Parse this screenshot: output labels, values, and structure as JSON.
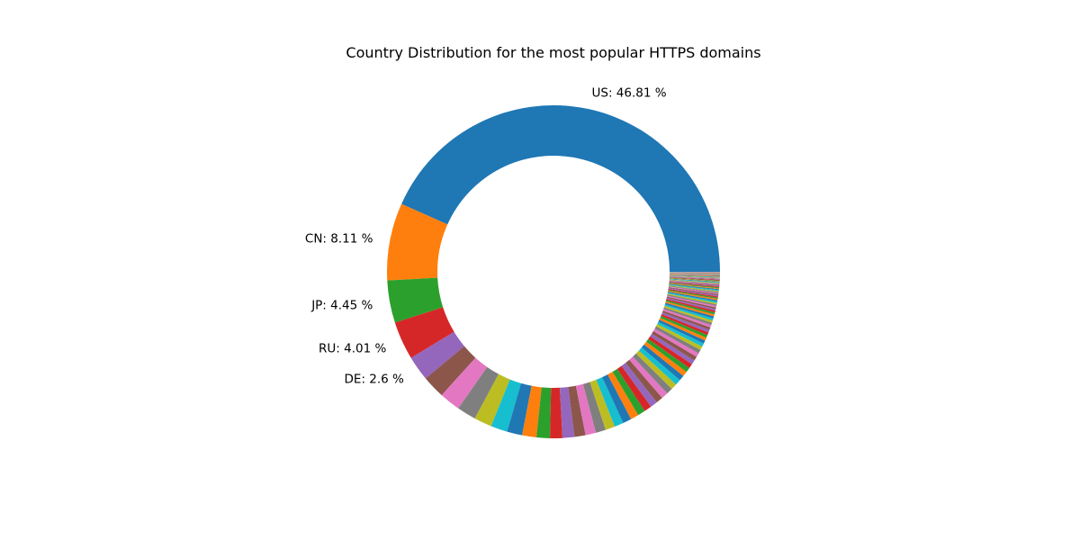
{
  "chart_data": {
    "type": "pie",
    "style": "donut",
    "title": "Country Distribution for the most popular HTTPS domains",
    "legend": "none",
    "start_angle_deg": 0,
    "direction": "counterclockwise",
    "slices": [
      {
        "name": "US",
        "value": 46.81,
        "label": "US: 46.81 %"
      },
      {
        "name": "CN",
        "value": 8.11,
        "label": "CN: 8.11 %"
      },
      {
        "name": "JP",
        "value": 4.45,
        "label": "JP: 4.45 %"
      },
      {
        "name": "RU",
        "value": 4.01,
        "label": "RU: 4.01 %"
      },
      {
        "name": "DE",
        "value": 2.6,
        "label": "DE: 2.6 %"
      }
    ],
    "unlabeled_values": [
      2.4,
      2.2,
      2.0,
      1.85,
      1.75,
      1.6,
      1.5,
      1.4,
      1.3,
      1.25,
      1.15,
      1.1,
      1.05,
      1.0,
      0.95,
      0.9,
      0.85,
      0.8,
      0.78,
      0.75,
      0.72,
      0.7,
      0.66,
      0.63,
      0.6,
      0.56,
      0.53,
      0.5,
      0.48,
      0.46,
      0.44,
      0.42,
      0.4,
      0.38,
      0.36,
      0.34,
      0.32,
      0.3,
      0.29,
      0.28,
      0.27,
      0.26,
      0.25,
      0.24,
      0.23,
      0.22,
      0.21,
      0.2,
      0.19,
      0.18,
      0.17,
      0.16,
      0.16,
      0.15,
      0.15,
      0.14,
      0.14,
      0.13,
      0.13,
      0.12,
      0.12,
      0.11,
      0.11,
      0.1,
      0.1,
      0.1,
      0.09,
      0.09,
      0.09,
      0.08,
      0.08,
      0.08,
      0.07,
      0.07,
      0.07,
      0.06,
      0.06,
      0.06,
      0.06,
      0.05,
      0.05,
      0.05,
      0.05,
      0.04,
      0.04,
      0.04,
      0.04,
      0.04,
      0.03,
      0.03,
      0.03,
      0.03,
      0.03,
      0.03,
      0.02,
      0.02,
      0.02,
      0.02,
      0.02,
      0.02,
      0.02,
      0.01,
      0.01,
      0.01,
      0.01,
      0.01,
      0.01,
      0.01,
      0.01,
      0.01,
      0.01,
      0.01
    ],
    "palette": [
      "#1f77b4",
      "#ff7f0e",
      "#2ca02c",
      "#d62728",
      "#9467bd",
      "#8c564b",
      "#e377c2",
      "#7f7f7f",
      "#bcbd22",
      "#17becf"
    ]
  }
}
